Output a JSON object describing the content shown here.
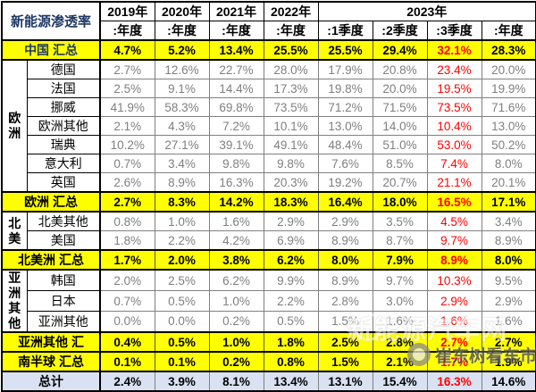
{
  "title_cell": "新能源渗透率",
  "header": {
    "years": [
      {
        "label": "2019年",
        "span": 1
      },
      {
        "label": "2020年",
        "span": 1
      },
      {
        "label": "2021年",
        "span": 1
      },
      {
        "label": "2022年",
        "span": 1
      },
      {
        "label": "2023年",
        "span": 4
      }
    ],
    "periods": [
      ":年度",
      ":年度",
      ":年度",
      ":年度",
      ":1季度",
      ":2季度",
      ":3季度",
      ":年度"
    ]
  },
  "red_column_index": 6,
  "rows": [
    {
      "kind": "china-summary",
      "name": "china-total",
      "label": "中国 汇总",
      "values": [
        "4.7%",
        "5.2%",
        "13.4%",
        "25.5%",
        "25.5%",
        "29.4%",
        "32.1%",
        "28.3%"
      ]
    },
    {
      "kind": "country",
      "name": "germany",
      "label": "德国",
      "group": {
        "label": "欧洲",
        "span": 7
      },
      "values": [
        "2.7%",
        "12.6%",
        "22.7%",
        "28.0%",
        "17.9%",
        "20.8%",
        "23.4%",
        "20.0%"
      ]
    },
    {
      "kind": "country",
      "name": "france",
      "label": "法国",
      "values": [
        "2.5%",
        "9.1%",
        "14.4%",
        "17.3%",
        "19.8%",
        "20.0%",
        "19.5%",
        "19.9%"
      ]
    },
    {
      "kind": "country",
      "name": "norway",
      "label": "挪威",
      "values": [
        "41.9%",
        "58.3%",
        "69.8%",
        "73.5%",
        "71.2%",
        "71.5%",
        "73.5%",
        "71.6%"
      ]
    },
    {
      "kind": "country",
      "name": "europe-other",
      "label": "欧洲其他",
      "values": [
        "2.1%",
        "4.3%",
        "7.2%",
        "10.1%",
        "13.0%",
        "14.0%",
        "10.4%",
        "13.0%"
      ]
    },
    {
      "kind": "country",
      "name": "sweden",
      "label": "瑞典",
      "values": [
        "10.2%",
        "27.1%",
        "39.1%",
        "49.1%",
        "48.4%",
        "51.0%",
        "53.0%",
        "50.2%"
      ]
    },
    {
      "kind": "country",
      "name": "italy",
      "label": "意大利",
      "values": [
        "0.7%",
        "3.4%",
        "9.8%",
        "9.8%",
        "7.6%",
        "8.5%",
        "7.4%",
        "8.0%"
      ]
    },
    {
      "kind": "country",
      "name": "uk",
      "label": "英国",
      "values": [
        "2.6%",
        "8.9%",
        "16.3%",
        "20.3%",
        "19.2%",
        "20.7%",
        "21.1%",
        "20.1%"
      ]
    },
    {
      "kind": "region-summary",
      "name": "europe-total",
      "label": "欧洲 汇总",
      "values": [
        "2.7%",
        "8.3%",
        "14.2%",
        "18.3%",
        "16.4%",
        "18.0%",
        "16.5%",
        "17.1%"
      ]
    },
    {
      "kind": "country",
      "name": "north-america-other",
      "label": "北美其他",
      "group": {
        "label": "北美",
        "span": 2
      },
      "values": [
        "0.8%",
        "1.0%",
        "1.6%",
        "2.9%",
        "2.9%",
        "3.5%",
        "4.5%",
        "3.4%"
      ]
    },
    {
      "kind": "country",
      "name": "usa",
      "label": "美国",
      "values": [
        "1.8%",
        "2.2%",
        "4.2%",
        "6.9%",
        "8.9%",
        "8.7%",
        "9.7%",
        "8.9%"
      ]
    },
    {
      "kind": "region-summary",
      "name": "north-america-total",
      "label": "北美洲 汇总",
      "values": [
        "1.7%",
        "2.0%",
        "3.8%",
        "6.2%",
        "8.0%",
        "7.9%",
        "8.9%",
        "8.0%"
      ]
    },
    {
      "kind": "country",
      "name": "korea",
      "label": "韩国",
      "group": {
        "label": "亚洲其他",
        "span": 3
      },
      "values": [
        "2.0%",
        "2.5%",
        "6.2%",
        "9.9%",
        "8.9%",
        "9.7%",
        "10.3%",
        "9.5%"
      ]
    },
    {
      "kind": "country",
      "name": "japan",
      "label": "日本",
      "values": [
        "0.7%",
        "0.5%",
        "1.0%",
        "2.2%",
        "2.8%",
        "3.0%",
        "2.9%",
        "2.9%"
      ]
    },
    {
      "kind": "country",
      "name": "asia-other",
      "label": "亚洲其他",
      "values": [
        "0.0%",
        "0.0%",
        "0.2%",
        "0.5%",
        "1.5%",
        "1.6%",
        "1.6%",
        "1.6%"
      ]
    },
    {
      "kind": "region-summary",
      "name": "asia-other-total",
      "label": "亚洲其他 汇",
      "values": [
        "0.4%",
        "0.5%",
        "1.0%",
        "1.8%",
        "2.5%",
        "2.8%",
        "2.7%",
        "2.7%"
      ]
    },
    {
      "kind": "region-summary",
      "name": "southern-hemisphere-total",
      "label": "南半球 汇总",
      "values": [
        "0.1%",
        "0.1%",
        "0.2%",
        "0.8%",
        "1.5%",
        "2.1%",
        "1.7%",
        "1.9%"
      ]
    },
    {
      "kind": "total",
      "name": "grand-total",
      "label": "总计",
      "values": [
        "2.4%",
        "3.9%",
        "8.1%",
        "13.4%",
        "13.1%",
        "15.4%",
        "16.3%",
        "14.6%"
      ]
    }
  ],
  "colors": {
    "summary_yellow": "#FFFF00",
    "total_row_bg": "#D9E1F2",
    "highlight_red": "#FF0000",
    "value_gray": "#7F7F7F",
    "title_navy": "#1F3864"
  },
  "watermark": {
    "site_text": "新能源汽车网",
    "author_text": "崔东树看车市"
  }
}
